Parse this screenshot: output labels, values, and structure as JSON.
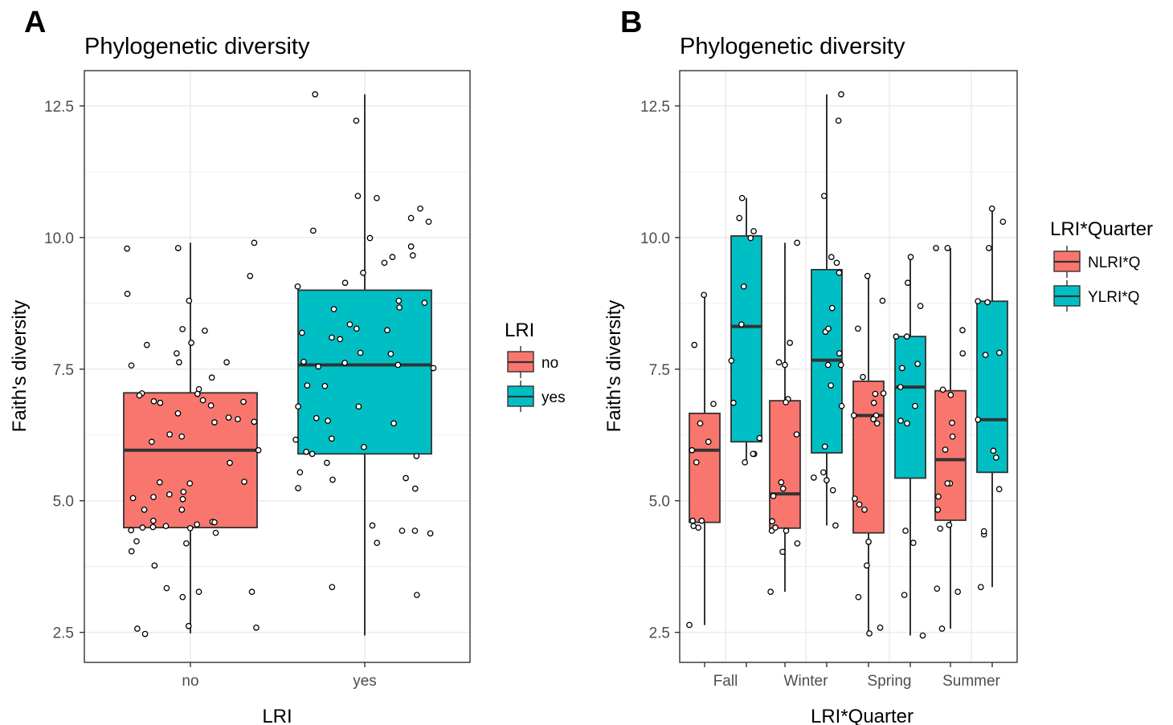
{
  "colors": {
    "no": "#F8766D",
    "yes": "#00BFC4",
    "box_outline": "#333333",
    "grid": "#EBEBEB",
    "panel_border": "#333333",
    "tick_text": "#4D4D4D"
  },
  "chart_data": [
    {
      "panel_label": "A",
      "type": "boxplot",
      "title": "Phylogenetic diversity",
      "xlabel": "LRI",
      "ylabel": "Faith's diversity",
      "ylim": [
        1.93,
        13.17
      ],
      "yticks": [
        2.5,
        5.0,
        7.5,
        10.0,
        12.5
      ],
      "ytick_labels": [
        "2.5",
        "5.0",
        "7.5",
        "10.0",
        "12.5"
      ],
      "categories": [
        "no",
        "yes"
      ],
      "grid": true,
      "legend": {
        "title": "LRI",
        "placement": "right",
        "entries": [
          "no",
          "yes"
        ]
      },
      "boxes": [
        {
          "category": "no",
          "group": "no",
          "min": 2.48,
          "q1": 4.49,
          "median": 5.96,
          "q3": 7.05,
          "max": 9.9
        },
        {
          "category": "yes",
          "group": "yes",
          "min": 2.44,
          "q1": 5.89,
          "median": 7.58,
          "q3": 9.0,
          "max": 12.72
        }
      ],
      "points": [
        {
          "category": "no",
          "values": [
            8.8,
            7.12,
            4.23,
            3.77,
            8.26,
            8.0,
            7.57,
            6.88,
            6.91,
            6.66,
            6.86,
            5.72,
            4.6,
            4.44,
            4.48,
            4.62,
            4.59,
            4.49,
            3.27,
            2.62,
            2.47,
            8.93,
            3.27,
            2.59,
            2.57,
            3.17,
            9.9,
            7.96,
            7.63,
            7.03,
            6.49,
            5.35,
            4.83,
            5.96,
            5.03,
            4.5,
            4.55,
            3.34,
            7.04,
            6.58,
            6.26,
            5.12,
            4.04,
            9.27,
            6.89,
            5.36,
            4.19,
            5.07,
            8.23,
            7.8,
            7.63,
            7.34,
            7.0,
            6.12,
            5.17,
            5.05,
            9.79,
            9.8,
            4.39,
            6.81,
            6.5,
            4.52,
            6.22,
            5.33,
            4.83,
            6.55
          ]
        },
        {
          "category": "yes",
          "values": [
            10.79,
            12.22,
            6.18,
            6.52,
            8.8,
            10.13,
            5.4,
            4.43,
            4.43,
            4.38,
            8.76,
            5.23,
            8.67,
            9.52,
            4.53,
            5.24,
            8.07,
            7.62,
            7.18,
            8.35,
            7.79,
            7.58,
            3.36,
            10.3,
            6.16,
            9.14,
            10.75,
            8.27,
            7.19,
            7.52,
            6.79,
            3.21,
            4.2,
            7.81,
            5.89,
            5.43,
            10.55,
            8.1,
            6.79,
            6.57,
            6.47,
            9.63,
            8.24,
            5.85,
            5.72,
            10.37,
            7.55,
            5.54,
            5.93,
            9.07,
            9.99,
            9.83,
            9.66,
            12.72,
            6.02,
            8.19,
            8.64,
            9.33,
            7.64
          ]
        }
      ]
    },
    {
      "panel_label": "B",
      "type": "boxplot",
      "title": "Phylogenetic diversity",
      "xlabel": "LRI*Quarter",
      "ylabel": "Faith's diversity",
      "ylim": [
        1.93,
        13.17
      ],
      "yticks": [
        2.5,
        5.0,
        7.5,
        10.0,
        12.5
      ],
      "ytick_labels": [
        "2.5",
        "5.0",
        "7.5",
        "10.0",
        "12.5"
      ],
      "categories": [
        "Fall",
        "Winter",
        "Spring",
        "Summer"
      ],
      "grid": true,
      "legend": {
        "title": "LRI*Quarter",
        "placement": "right",
        "entries": [
          "NLRI*Q",
          "YLRI*Q"
        ]
      },
      "boxes": [
        {
          "category": "Fall",
          "group": "NLRI*Q",
          "min": 2.64,
          "q1": 4.59,
          "median": 5.96,
          "q3": 6.66,
          "max": 8.91
        },
        {
          "category": "Fall",
          "group": "YLRI*Q",
          "min": 5.72,
          "q1": 6.12,
          "median": 8.31,
          "q3": 10.03,
          "max": 10.75
        },
        {
          "category": "Winter",
          "group": "NLRI*Q",
          "min": 3.27,
          "q1": 4.48,
          "median": 5.13,
          "q3": 6.9,
          "max": 9.9
        },
        {
          "category": "Winter",
          "group": "YLRI*Q",
          "min": 4.53,
          "q1": 5.91,
          "median": 7.67,
          "q3": 9.39,
          "max": 12.72
        },
        {
          "category": "Spring",
          "group": "NLRI*Q",
          "min": 2.48,
          "q1": 4.39,
          "median": 6.62,
          "q3": 7.27,
          "max": 9.27
        },
        {
          "category": "Spring",
          "group": "YLRI*Q",
          "min": 2.44,
          "q1": 5.43,
          "median": 7.16,
          "q3": 8.12,
          "max": 9.63
        },
        {
          "category": "Summer",
          "group": "NLRI*Q",
          "min": 2.57,
          "q1": 4.63,
          "median": 5.78,
          "q3": 7.09,
          "max": 9.8
        },
        {
          "category": "Summer",
          "group": "YLRI*Q",
          "min": 3.36,
          "q1": 5.54,
          "median": 6.54,
          "q3": 8.79,
          "max": 10.55
        }
      ],
      "points": [
        {
          "category": "Fall",
          "group": "NLRI*Q",
          "values": [
            6.47,
            5.73,
            4.49,
            6.84,
            4.52,
            7.96,
            2.64,
            6.12,
            5.96,
            4.62,
            4.62,
            8.91
          ]
        },
        {
          "category": "Fall",
          "group": "YLRI*Q",
          "values": [
            9.07,
            7.66,
            5.89,
            5.73,
            10.12,
            8.35,
            6.19,
            5.89,
            9.99,
            10.37,
            10.75,
            6.86
          ]
        },
        {
          "category": "Winter",
          "group": "NLRI*Q",
          "values": [
            6.26,
            4.61,
            4.43,
            4.49,
            7.63,
            3.27,
            6.93,
            5.23,
            5.35,
            4.43,
            4.19,
            6.87,
            4.03,
            5.09,
            9.9,
            8.0,
            7.58
          ]
        },
        {
          "category": "Winter",
          "group": "YLRI*Q",
          "values": [
            9.33,
            8.66,
            8.21,
            7.58,
            12.22,
            10.79,
            5.39,
            5.2,
            4.53,
            7.8,
            7.58,
            6.8,
            7.19,
            9.52,
            6.03,
            5.44,
            12.72,
            8.27,
            9.63,
            5.54
          ]
        },
        {
          "category": "Spring",
          "group": "NLRI*Q",
          "values": [
            6.62,
            6.47,
            4.22,
            3.77,
            2.59,
            7.03,
            5.04,
            4.83,
            9.27,
            7.04,
            6.55,
            8.27,
            6.86,
            3.17,
            4.93,
            2.48,
            7.35,
            6.62,
            8.8
          ]
        },
        {
          "category": "Spring",
          "group": "YLRI*Q",
          "values": [
            9.63,
            8.12,
            8.12,
            6.52,
            6.8,
            7.52,
            7.6,
            3.21,
            2.44,
            4.2,
            6.47,
            8.7,
            7.16,
            4.43,
            9.14
          ]
        },
        {
          "category": "Summer",
          "group": "NLRI*Q",
          "values": [
            8.24,
            6.22,
            4.83,
            4.47,
            5.33,
            7.11,
            5.33,
            7.01,
            5.97,
            9.8,
            3.33,
            3.27,
            4.54,
            6.48,
            7.8,
            5.08,
            9.8,
            2.57
          ]
        },
        {
          "category": "Summer",
          "group": "YLRI*Q",
          "values": [
            9.8,
            6.54,
            3.36,
            5.22,
            10.3,
            8.79,
            5.95,
            7.77,
            8.77,
            4.36,
            7.81,
            10.55,
            4.42,
            5.82
          ]
        }
      ]
    }
  ]
}
